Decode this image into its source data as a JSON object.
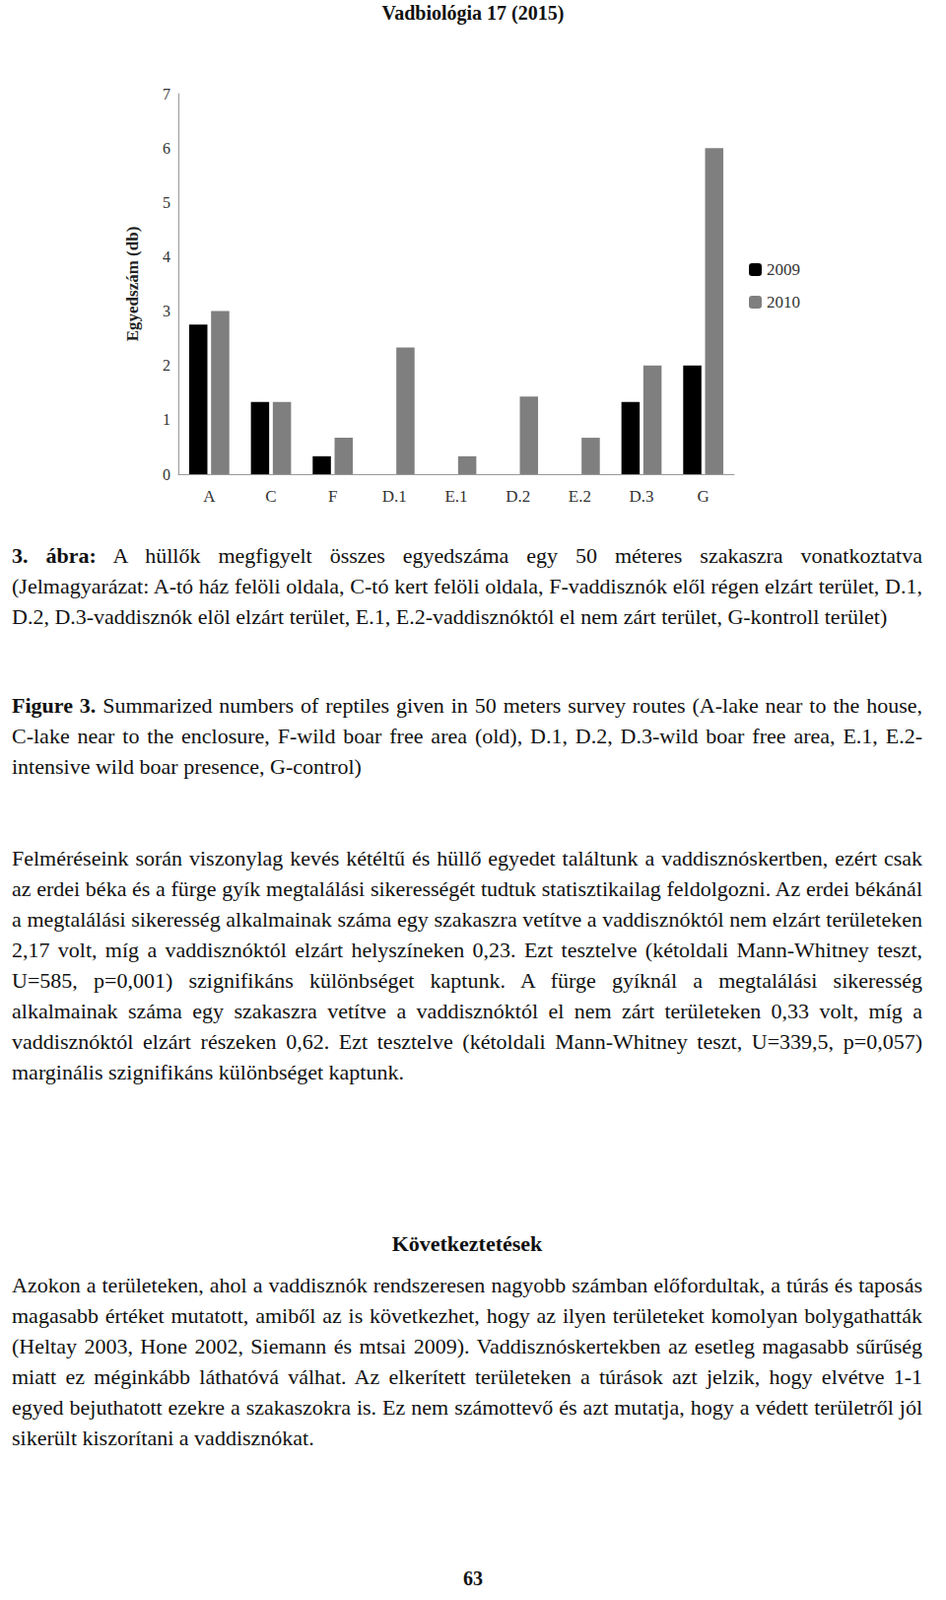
{
  "header": "Vadbiológia 17 (2015)",
  "chart_data": {
    "type": "bar",
    "y_label": "Egyedszám (db)",
    "categories": [
      "A",
      "C",
      "F",
      "D.1",
      "E.1",
      "D.2",
      "E.2",
      "D.3",
      "G"
    ],
    "series": [
      {
        "name": "2009",
        "color": "#000000",
        "values": [
          2.75,
          1.33,
          0.33,
          0,
          0,
          0,
          0,
          1.33,
          2
        ]
      },
      {
        "name": "2010",
        "color": "#7f7f7f",
        "values": [
          3,
          1.33,
          0.67,
          2.33,
          0.33,
          1.43,
          0.67,
          2,
          6
        ]
      }
    ],
    "ylim": [
      0,
      7
    ],
    "yticks": [
      0,
      1,
      2,
      3,
      4,
      5,
      6,
      7
    ],
    "grid": false,
    "legend": "right"
  },
  "caption_hu": {
    "label": "3. ábra:",
    "text": "A hüllők megfigyelt összes egyedszáma egy 50 méteres szakaszra vonatkoztatva (Jelmagyarázat: A-tó ház felöli oldala, C-tó kert felöli oldala, F-vaddisznók elől régen elzárt terület, D.1, D.2, D.3-vaddisznók elöl elzárt terület, E.1, E.2-vaddisznóktól el nem zárt terület, G-kontroll terület)"
  },
  "caption_en": {
    "label": "Figure 3.",
    "text": "Summarized numbers of reptiles given in 50 meters survey routes (A-lake near to the house, C-lake near to the enclosure, F-wild boar free area (old), D.1, D.2, D.3-wild boar free area, E.1, E.2-intensive wild boar presence, G-control)"
  },
  "body": "Felméréseink során viszonylag kevés kétéltű és hüllő egyedet találtunk a vaddisznóskertben, ezért csak az erdei béka és a fürge gyík megtalálási sikerességét tudtuk statisztikailag feldolgozni. Az erdei békánál a megtalálási sikeresség alkalmainak száma egy szakaszra vetítve a vaddisznóktól nem elzárt területeken 2,17 volt, míg a vaddisznóktól elzárt helyszíneken 0,23. Ezt tesztelve (kétoldali Mann-Whitney teszt, U=585, p=0,001) szignifikáns különbséget kaptunk. A fürge gyíknál a megtalálási sikeresség alkalmainak száma egy szakaszra vetítve a vaddisznóktól el nem zárt területeken 0,33 volt, míg a vaddisznóktól elzárt részeken 0,62. Ezt tesztelve (kétoldali Mann-Whitney teszt, U=339,5, p=0,057) marginális szignifikáns különbséget kaptunk.",
  "conclusion": {
    "heading": "Következtetések",
    "text": "Azokon a területeken, ahol a vaddisznók rendszeresen nagyobb számban előfordultak, a túrás és taposás magasabb értéket mutatott, amiből az is következhet, hogy az ilyen területeket komolyan bolygathatták (Heltay 2003, Hone 2002, Siemann és mtsai 2009). Vaddisznóskertekben az esetleg magasabb sűrűség miatt ez méginkább láthatóvá válhat. Az elkerített területeken a túrások azt jelzik, hogy elvétve 1-1 egyed bejuthatott ezekre a szakaszokra is. Ez nem számottevő és azt mutatja, hogy a védett területről jól sikerült kiszorítani a vaddisznókat."
  },
  "page_number": "63"
}
